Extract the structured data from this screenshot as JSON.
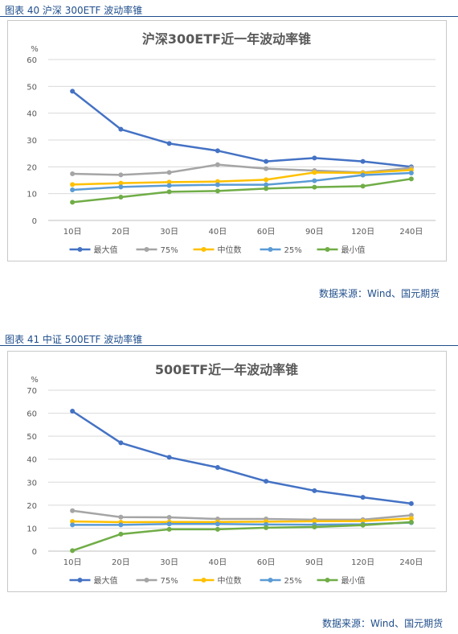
{
  "charts": [
    {
      "caption": "图表 40  沪深 300ETF 波动率锥",
      "source": "数据来源：Wind、国元期货",
      "chart_data": {
        "type": "line",
        "title": "沪深300ETF近一年波动率锥",
        "ylabel": "%",
        "ylim": [
          0,
          60
        ],
        "yticks": [
          0,
          10,
          20,
          30,
          40,
          50,
          60
        ],
        "categories": [
          "10日",
          "20日",
          "30日",
          "40日",
          "60日",
          "90日",
          "120日",
          "240日"
        ],
        "grid": true,
        "legend": "bottom",
        "series": [
          {
            "name": "最大值",
            "color": "#4472c4",
            "values": [
              48.2,
              34.0,
              28.7,
              26.0,
              22.0,
              23.3,
              22.0,
              20.0
            ]
          },
          {
            "name": "75%",
            "color": "#a5a5a5",
            "values": [
              17.4,
              17.0,
              17.9,
              20.8,
              19.3,
              18.6,
              17.9,
              19.6
            ]
          },
          {
            "name": "中位数",
            "color": "#ffc000",
            "values": [
              13.4,
              13.9,
              14.3,
              14.5,
              15.2,
              17.9,
              17.7,
              18.8
            ]
          },
          {
            "name": "25%",
            "color": "#5b9bd5",
            "values": [
              11.4,
              12.5,
              13.0,
              13.3,
              13.3,
              14.8,
              16.9,
              17.7
            ]
          },
          {
            "name": "最小值",
            "color": "#70ad47",
            "values": [
              6.8,
              8.7,
              10.7,
              11.0,
              11.9,
              12.4,
              12.8,
              15.5
            ]
          }
        ]
      }
    },
    {
      "caption": "图表 41  中证 500ETF 波动率锥",
      "source": "数据来源：Wind、国元期货",
      "chart_data": {
        "type": "line",
        "title": "500ETF近一年波动率锥",
        "ylabel": "%",
        "ylim": [
          0,
          70
        ],
        "yticks": [
          0,
          10,
          20,
          30,
          40,
          50,
          60,
          70
        ],
        "categories": [
          "10日",
          "20日",
          "30日",
          "40日",
          "60日",
          "90日",
          "120日",
          "240日"
        ],
        "grid": true,
        "legend": "bottom",
        "series": [
          {
            "name": "最大值",
            "color": "#4472c4",
            "values": [
              60.9,
              47.1,
              40.8,
              36.4,
              30.4,
              26.3,
              23.4,
              20.7
            ]
          },
          {
            "name": "75%",
            "color": "#a5a5a5",
            "values": [
              17.6,
              14.8,
              14.7,
              14.0,
              14.0,
              13.7,
              13.7,
              15.6
            ]
          },
          {
            "name": "中位数",
            "color": "#ffc000",
            "values": [
              12.9,
              12.6,
              12.7,
              12.7,
              12.8,
              13.0,
              13.1,
              14.2
            ]
          },
          {
            "name": "25%",
            "color": "#5b9bd5",
            "values": [
              11.4,
              11.4,
              11.8,
              11.8,
              11.6,
              11.5,
              11.7,
              12.4
            ]
          },
          {
            "name": "最小值",
            "color": "#70ad47",
            "values": [
              0.2,
              7.4,
              9.5,
              9.5,
              10.2,
              10.5,
              11.3,
              12.6
            ]
          }
        ]
      }
    }
  ]
}
